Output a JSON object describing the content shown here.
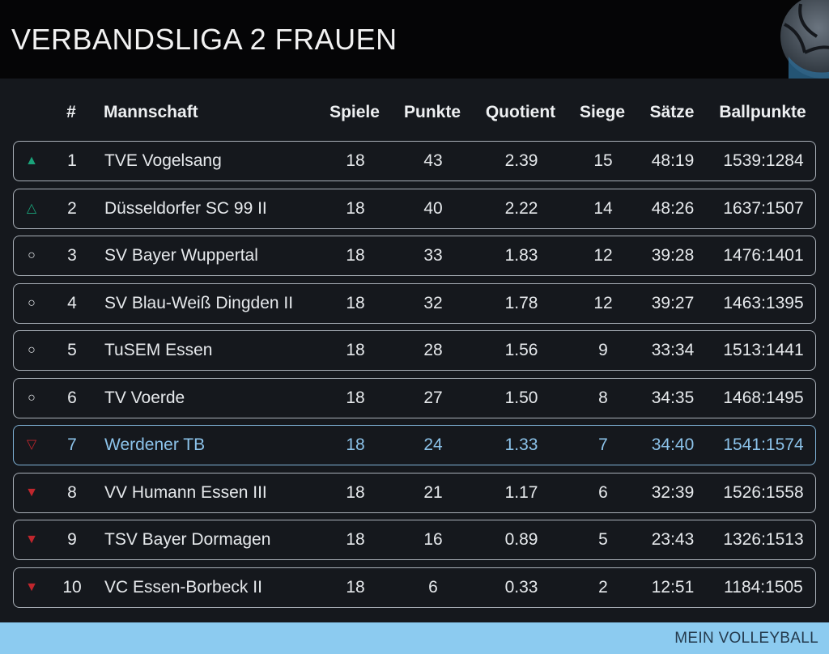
{
  "header": {
    "title": "VERBANDSLIGA 2 FRAUEN",
    "logo_icon": "volleyball-logo-icon"
  },
  "table": {
    "columns": {
      "rank": "#",
      "team": "Mannschaft",
      "games": "Spiele",
      "points": "Punkte",
      "quotient": "Quotient",
      "wins": "Siege",
      "sets": "Sätze",
      "ballpoints": "Ballpunkte"
    },
    "rows": [
      {
        "trend": "▲",
        "trend_color": "#1aa37a",
        "rank": "1",
        "team": "TVE Vogelsang",
        "games": "18",
        "points": "43",
        "quotient": "2.39",
        "wins": "15",
        "sets": "48:19",
        "ballpoints": "1539:1284",
        "highlight": false
      },
      {
        "trend": "△",
        "trend_color": "#1aa37a",
        "rank": "2",
        "team": "Düsseldorfer SC 99 II",
        "games": "18",
        "points": "40",
        "quotient": "2.22",
        "wins": "14",
        "sets": "48:26",
        "ballpoints": "1637:1507",
        "highlight": false
      },
      {
        "trend": "○",
        "trend_color": "#e6e9ec",
        "rank": "3",
        "team": "SV Bayer Wuppertal",
        "games": "18",
        "points": "33",
        "quotient": "1.83",
        "wins": "12",
        "sets": "39:28",
        "ballpoints": "1476:1401",
        "highlight": false
      },
      {
        "trend": "○",
        "trend_color": "#e6e9ec",
        "rank": "4",
        "team": "SV Blau-Weiß Dingden II",
        "games": "18",
        "points": "32",
        "quotient": "1.78",
        "wins": "12",
        "sets": "39:27",
        "ballpoints": "1463:1395",
        "highlight": false
      },
      {
        "trend": "○",
        "trend_color": "#e6e9ec",
        "rank": "5",
        "team": "TuSEM Essen",
        "games": "18",
        "points": "28",
        "quotient": "1.56",
        "wins": "9",
        "sets": "33:34",
        "ballpoints": "1513:1441",
        "highlight": false
      },
      {
        "trend": "○",
        "trend_color": "#e6e9ec",
        "rank": "6",
        "team": "TV Voerde",
        "games": "18",
        "points": "27",
        "quotient": "1.50",
        "wins": "8",
        "sets": "34:35",
        "ballpoints": "1468:1495",
        "highlight": false
      },
      {
        "trend": "▽",
        "trend_color": "#c0262d",
        "rank": "7",
        "team": "Werdener TB",
        "games": "18",
        "points": "24",
        "quotient": "1.33",
        "wins": "7",
        "sets": "34:40",
        "ballpoints": "1541:1574",
        "highlight": true
      },
      {
        "trend": "▼",
        "trend_color": "#c0262d",
        "rank": "8",
        "team": "VV Humann Essen III",
        "games": "18",
        "points": "21",
        "quotient": "1.17",
        "wins": "6",
        "sets": "32:39",
        "ballpoints": "1526:1558",
        "highlight": false
      },
      {
        "trend": "▼",
        "trend_color": "#c0262d",
        "rank": "9",
        "team": "TSV Bayer Dormagen",
        "games": "18",
        "points": "16",
        "quotient": "0.89",
        "wins": "5",
        "sets": "23:43",
        "ballpoints": "1326:1513",
        "highlight": false
      },
      {
        "trend": "▼",
        "trend_color": "#c0262d",
        "rank": "10",
        "team": "VC Essen-Borbeck II",
        "games": "18",
        "points": "6",
        "quotient": "0.33",
        "wins": "2",
        "sets": "12:51",
        "ballpoints": "1184:1505",
        "highlight": false
      }
    ]
  },
  "footer": {
    "label": "MEIN VOLLEYBALL"
  },
  "colors": {
    "highlight": "#8cc3ea",
    "footer_bg": "#8ccbf0",
    "promotion": "#1aa37a",
    "relegation": "#c0262d"
  }
}
